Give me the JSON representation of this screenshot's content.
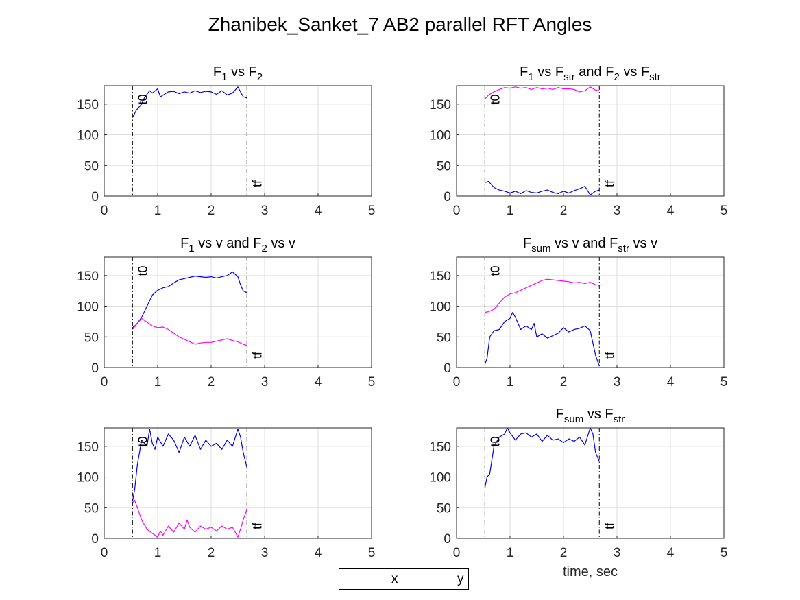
{
  "figure": {
    "title": "Zhanibek_Sanket_7 AB2 parallel RFT Angles"
  },
  "colors": {
    "x": "#0000ee",
    "y": "#ff00ff",
    "axis": "#262626",
    "grid": "#dedede",
    "marker": "#000000"
  },
  "legend": {
    "entries": [
      {
        "name": "x",
        "color": "#0000ee"
      },
      {
        "name": "y",
        "color": "#ff00ff"
      }
    ]
  },
  "chart_data": [
    {
      "type": "line",
      "title": {
        "base": "F",
        "parts": [
          [
            "F",
            ""
          ],
          [
            "1",
            "sub"
          ],
          [
            " vs F",
            ""
          ],
          [
            "2",
            "sub"
          ]
        ]
      },
      "xlabel": "",
      "xlim": [
        0,
        5
      ],
      "ylim": [
        0,
        180
      ],
      "xticks": [
        "0",
        "1",
        "2",
        "3",
        "4",
        "5"
      ],
      "yticks": [
        "0",
        "50",
        "100",
        "150"
      ],
      "grid": true,
      "markers": [
        {
          "label": "t0",
          "x": 0.53
        },
        {
          "label": "tf",
          "x": 2.67
        }
      ],
      "series": [
        {
          "key": "x",
          "x": [
            0.53,
            0.6,
            0.7,
            0.75,
            0.85,
            0.9,
            1.0,
            1.05,
            1.2,
            1.3,
            1.4,
            1.5,
            1.6,
            1.7,
            1.8,
            1.9,
            2.0,
            2.1,
            2.2,
            2.3,
            2.4,
            2.5,
            2.6,
            2.67
          ],
          "y": [
            128,
            140,
            150,
            160,
            172,
            168,
            175,
            162,
            170,
            171,
            167,
            170,
            168,
            172,
            169,
            171,
            170,
            166,
            172,
            165,
            168,
            178,
            162,
            160
          ]
        }
      ]
    },
    {
      "type": "line",
      "title": {
        "parts": [
          [
            "F",
            ""
          ],
          [
            "1",
            "sub"
          ],
          [
            " vs F",
            ""
          ],
          [
            "str",
            "sub"
          ],
          [
            " and F",
            ""
          ],
          [
            "2",
            "sub"
          ],
          [
            " vs F",
            ""
          ],
          [
            "str",
            "sub"
          ]
        ]
      },
      "xlabel": "",
      "xlim": [
        0,
        5
      ],
      "ylim": [
        0,
        180
      ],
      "xticks": [
        "0",
        "1",
        "2",
        "3",
        "4",
        "5"
      ],
      "yticks": [
        "0",
        "50",
        "100",
        "150"
      ],
      "grid": true,
      "markers": [
        {
          "label": "t0",
          "x": 0.53
        },
        {
          "label": "tf",
          "x": 2.67
        }
      ],
      "series": [
        {
          "key": "x",
          "x": [
            0.53,
            0.6,
            0.7,
            0.8,
            0.9,
            1.0,
            1.1,
            1.2,
            1.3,
            1.4,
            1.5,
            1.6,
            1.7,
            1.8,
            1.9,
            2.0,
            2.1,
            2.2,
            2.3,
            2.4,
            2.5,
            2.6,
            2.67
          ],
          "y": [
            22,
            24,
            14,
            10,
            8,
            5,
            8,
            4,
            9,
            6,
            5,
            8,
            10,
            6,
            4,
            8,
            5,
            9,
            12,
            16,
            2,
            8,
            10
          ]
        },
        {
          "key": "y",
          "x": [
            0.53,
            0.6,
            0.7,
            0.8,
            0.9,
            1.0,
            1.1,
            1.2,
            1.3,
            1.4,
            1.5,
            1.6,
            1.7,
            1.8,
            1.9,
            2.0,
            2.1,
            2.2,
            2.3,
            2.4,
            2.5,
            2.6,
            2.67
          ],
          "y": [
            158,
            165,
            170,
            174,
            177,
            176,
            178,
            176,
            177,
            174,
            177,
            175,
            176,
            174,
            177,
            175,
            175,
            174,
            170,
            172,
            178,
            173,
            172
          ]
        }
      ]
    },
    {
      "type": "line",
      "title": {
        "parts": [
          [
            "F",
            ""
          ],
          [
            "1",
            "sub"
          ],
          [
            " vs v and F",
            ""
          ],
          [
            "2",
            "sub"
          ],
          [
            " vs v",
            ""
          ]
        ]
      },
      "xlabel": "",
      "xlim": [
        0,
        5
      ],
      "ylim": [
        0,
        180
      ],
      "xticks": [
        "0",
        "1",
        "2",
        "3",
        "4",
        "5"
      ],
      "yticks": [
        "0",
        "50",
        "100",
        "150"
      ],
      "grid": true,
      "markers": [
        {
          "label": "t0",
          "x": 0.53
        },
        {
          "label": "tf",
          "x": 2.67
        }
      ],
      "series": [
        {
          "key": "x",
          "x": [
            0.53,
            0.6,
            0.7,
            0.8,
            0.9,
            1.0,
            1.1,
            1.2,
            1.3,
            1.4,
            1.5,
            1.6,
            1.7,
            1.8,
            1.9,
            2.0,
            2.1,
            2.2,
            2.3,
            2.4,
            2.5,
            2.55,
            2.6,
            2.67
          ],
          "y": [
            65,
            70,
            82,
            100,
            118,
            126,
            130,
            132,
            138,
            143,
            145,
            147,
            149,
            148,
            147,
            148,
            146,
            148,
            150,
            156,
            148,
            135,
            125,
            122
          ]
        },
        {
          "key": "y",
          "x": [
            0.53,
            0.6,
            0.7,
            0.8,
            0.9,
            1.0,
            1.1,
            1.2,
            1.3,
            1.4,
            1.5,
            1.6,
            1.7,
            1.8,
            1.9,
            2.0,
            2.1,
            2.2,
            2.3,
            2.4,
            2.5,
            2.6,
            2.67
          ],
          "y": [
            62,
            70,
            80,
            74,
            68,
            65,
            66,
            62,
            56,
            50,
            46,
            42,
            38,
            40,
            41,
            41,
            43,
            45,
            47,
            44,
            42,
            38,
            36
          ]
        }
      ]
    },
    {
      "type": "line",
      "title": {
        "parts": [
          [
            "F",
            ""
          ],
          [
            "sum",
            "sub"
          ],
          [
            " vs v and F",
            ""
          ],
          [
            "str",
            "sub"
          ],
          [
            " vs v",
            ""
          ]
        ]
      },
      "xlabel": "",
      "xlim": [
        0,
        5
      ],
      "ylim": [
        0,
        180
      ],
      "xticks": [
        "0",
        "1",
        "2",
        "3",
        "4",
        "5"
      ],
      "yticks": [
        "0",
        "50",
        "100",
        "150"
      ],
      "grid": true,
      "markers": [
        {
          "label": "t0",
          "x": 0.53
        },
        {
          "label": "tf",
          "x": 2.67
        }
      ],
      "series": [
        {
          "key": "x",
          "x": [
            0.53,
            0.57,
            0.62,
            0.7,
            0.8,
            0.9,
            1.0,
            1.05,
            1.1,
            1.2,
            1.3,
            1.4,
            1.45,
            1.5,
            1.6,
            1.7,
            1.8,
            1.9,
            2.0,
            2.1,
            2.2,
            2.3,
            2.4,
            2.5,
            2.55,
            2.6,
            2.67
          ],
          "y": [
            5,
            15,
            50,
            60,
            62,
            75,
            80,
            90,
            82,
            62,
            68,
            62,
            72,
            50,
            55,
            48,
            52,
            56,
            65,
            58,
            62,
            64,
            68,
            60,
            40,
            20,
            2
          ]
        },
        {
          "key": "y",
          "x": [
            0.53,
            0.6,
            0.7,
            0.8,
            0.9,
            1.0,
            1.1,
            1.2,
            1.3,
            1.4,
            1.5,
            1.6,
            1.7,
            1.8,
            1.9,
            2.0,
            2.1,
            2.2,
            2.3,
            2.4,
            2.5,
            2.6,
            2.67
          ],
          "y": [
            90,
            91,
            95,
            105,
            115,
            120,
            122,
            126,
            130,
            134,
            138,
            142,
            144,
            143,
            142,
            141,
            140,
            138,
            139,
            137,
            139,
            135,
            134
          ]
        }
      ]
    },
    {
      "type": "line",
      "title": {
        "parts": []
      },
      "xlabel": "",
      "xlim": [
        0,
        5
      ],
      "ylim": [
        0,
        180
      ],
      "xticks": [
        "0",
        "1",
        "2",
        "3",
        "4",
        "5"
      ],
      "yticks": [
        "0",
        "50",
        "100",
        "150"
      ],
      "grid": true,
      "markers": [
        {
          "label": "t0",
          "x": 0.53
        },
        {
          "label": "tf",
          "x": 2.67
        }
      ],
      "series": [
        {
          "key": "x",
          "x": [
            0.53,
            0.57,
            0.62,
            0.7,
            0.8,
            0.85,
            0.9,
            0.95,
            1.0,
            1.1,
            1.2,
            1.3,
            1.4,
            1.5,
            1.6,
            1.7,
            1.8,
            1.9,
            2.0,
            2.1,
            2.2,
            2.3,
            2.4,
            2.5,
            2.55,
            2.6,
            2.67
          ],
          "y": [
            60,
            80,
            120,
            160,
            150,
            178,
            155,
            145,
            165,
            150,
            170,
            160,
            140,
            165,
            150,
            168,
            145,
            160,
            150,
            155,
            145,
            160,
            150,
            178,
            165,
            140,
            115
          ]
        },
        {
          "key": "y",
          "x": [
            0.53,
            0.57,
            0.62,
            0.7,
            0.8,
            0.9,
            0.95,
            1.0,
            1.05,
            1.1,
            1.2,
            1.3,
            1.4,
            1.5,
            1.55,
            1.6,
            1.7,
            1.8,
            1.9,
            2.0,
            2.1,
            2.2,
            2.3,
            2.4,
            2.5,
            2.55,
            2.6,
            2.67
          ],
          "y": [
            58,
            62,
            50,
            30,
            15,
            8,
            5,
            2,
            12,
            5,
            20,
            10,
            25,
            15,
            30,
            18,
            10,
            20,
            15,
            18,
            12,
            20,
            15,
            18,
            2,
            15,
            30,
            48
          ]
        }
      ]
    },
    {
      "type": "line",
      "title": {
        "parts": [
          [
            "F",
            ""
          ],
          [
            "sum",
            "sub"
          ],
          [
            " vs F",
            ""
          ],
          [
            "str",
            "sub"
          ]
        ]
      },
      "xlabel": "time, sec",
      "xlim": [
        0,
        5
      ],
      "ylim": [
        0,
        180
      ],
      "xticks": [
        "0",
        "1",
        "2",
        "3",
        "4",
        "5"
      ],
      "yticks": [
        "0",
        "50",
        "100",
        "150"
      ],
      "grid": true,
      "markers": [
        {
          "label": "t0",
          "x": 0.53
        },
        {
          "label": "tf",
          "x": 2.67
        }
      ],
      "series": [
        {
          "key": "x",
          "x": [
            0.53,
            0.57,
            0.62,
            0.7,
            0.8,
            0.9,
            0.95,
            1.0,
            1.1,
            1.2,
            1.3,
            1.4,
            1.5,
            1.6,
            1.7,
            1.8,
            1.9,
            2.0,
            2.1,
            2.2,
            2.3,
            2.4,
            2.5,
            2.55,
            2.6,
            2.67
          ],
          "y": [
            82,
            100,
            105,
            150,
            165,
            170,
            180,
            172,
            160,
            170,
            172,
            165,
            170,
            158,
            168,
            160,
            162,
            156,
            162,
            158,
            165,
            152,
            180,
            170,
            140,
            125
          ]
        }
      ]
    }
  ]
}
